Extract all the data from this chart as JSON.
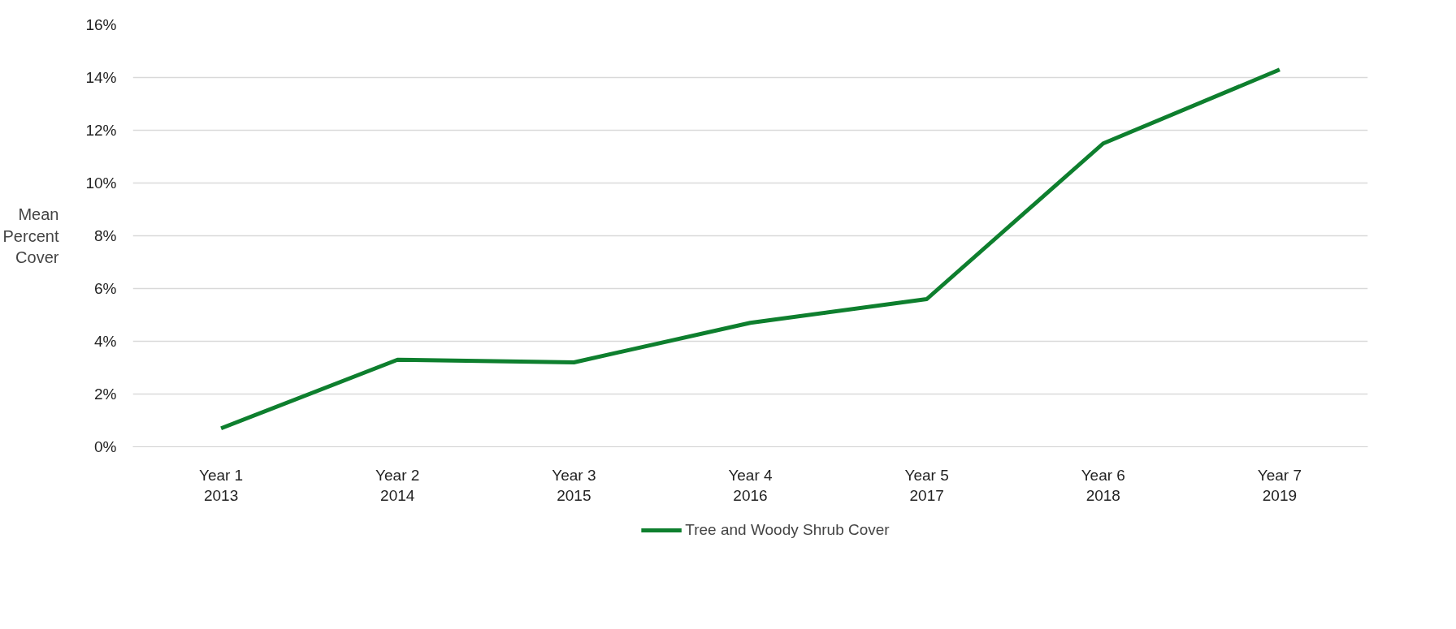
{
  "chart_data": {
    "type": "line",
    "ylabel": "Mean\nPercent\nCover",
    "categories": [
      "Year 1\n2013",
      "Year 2\n2014",
      "Year 3\n2015",
      "Year 4\n2016",
      "Year 5\n2017",
      "Year 6\n2018",
      "Year 7\n2019"
    ],
    "series": [
      {
        "name": "Tree and Woody Shrub Cover",
        "color": "#0e7f2e",
        "values": [
          0.7,
          3.3,
          3.2,
          4.7,
          5.6,
          11.5,
          14.3
        ]
      }
    ],
    "ylim": [
      0,
      16
    ],
    "yticks": [
      {
        "value": 0,
        "label": "0%"
      },
      {
        "value": 2,
        "label": "2%"
      },
      {
        "value": 4,
        "label": "4%"
      },
      {
        "value": 6,
        "label": "6%"
      },
      {
        "value": 8,
        "label": "8%"
      },
      {
        "value": 10,
        "label": "10%"
      },
      {
        "value": 12,
        "label": "12%"
      },
      {
        "value": 14,
        "label": "14%"
      },
      {
        "value": 16,
        "label": "16%"
      }
    ],
    "grid": "y",
    "legend": "bottom",
    "marker": "none",
    "line_style": "solid"
  }
}
